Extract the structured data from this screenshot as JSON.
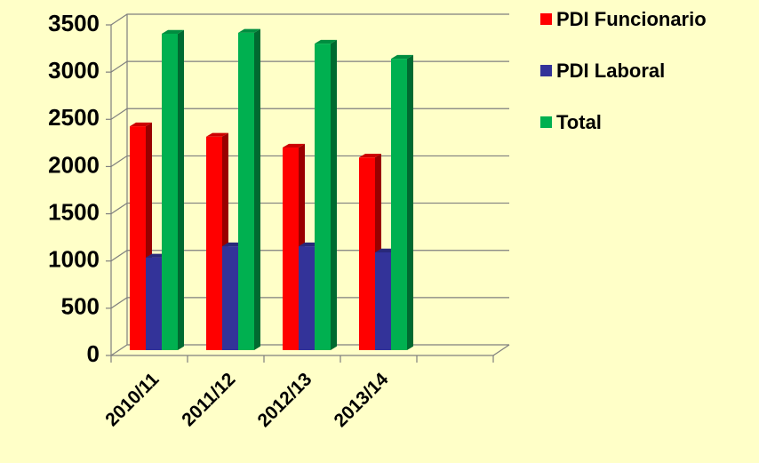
{
  "chart_data": {
    "type": "bar3d",
    "categories": [
      "2010/11",
      "2011/12",
      "2012/13",
      "2013/14",
      null
    ],
    "series": [
      {
        "name": "PDI Funcionario",
        "color": "#ff0000",
        "values": [
          2370,
          2260,
          2145,
          2040,
          null
        ]
      },
      {
        "name": "PDI Laboral",
        "color": "#333399",
        "values": [
          980,
          1100,
          1100,
          1035,
          null
        ]
      },
      {
        "name": "Total",
        "color": "#00b050",
        "values": [
          3350,
          3360,
          3245,
          3085,
          null
        ]
      }
    ],
    "ylim": [
      0,
      3500
    ],
    "yticks": [
      0,
      500,
      1000,
      1500,
      2000,
      2500,
      3000,
      3500
    ],
    "grid": true,
    "legend": "right"
  }
}
